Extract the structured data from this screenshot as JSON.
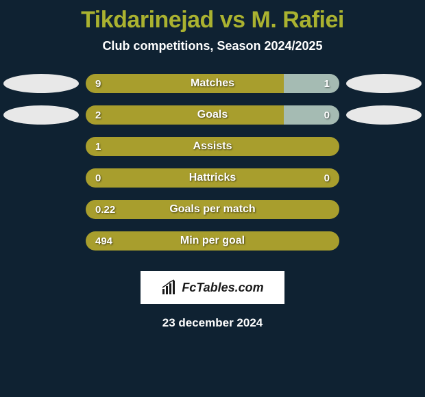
{
  "title": "Tikdarinejad vs M. Rafiei",
  "subtitle": "Club competitions, Season 2024/2025",
  "date": "23 december 2024",
  "logo_text": "FcTables.com",
  "colors": {
    "background": "#0f2232",
    "title": "#aab230",
    "text_white": "#ffffff",
    "bar_left": "#a89e2d",
    "bar_right_blue": "#a5bbb3",
    "ellipse_light": "#e8e8e8"
  },
  "stats": [
    {
      "label": "Matches",
      "left_value": "9",
      "right_value": "1",
      "left_pct": 78,
      "left_color": "#a89e2d",
      "right_color": "#a5bbb3",
      "show_left_ellipse": true,
      "show_right_ellipse": true,
      "left_ellipse_color": "#e8e8e8",
      "right_ellipse_color": "#e8e8e8",
      "show_right_value": true
    },
    {
      "label": "Goals",
      "left_value": "2",
      "right_value": "0",
      "left_pct": 78,
      "left_color": "#a89e2d",
      "right_color": "#a5bbb3",
      "show_left_ellipse": true,
      "show_right_ellipse": true,
      "left_ellipse_color": "#e8e8e8",
      "right_ellipse_color": "#e8e8e8",
      "show_right_value": true
    },
    {
      "label": "Assists",
      "left_value": "1",
      "right_value": "",
      "left_pct": 100,
      "left_color": "#a89e2d",
      "right_color": "#a89e2d",
      "show_left_ellipse": false,
      "show_right_ellipse": false,
      "show_right_value": false
    },
    {
      "label": "Hattricks",
      "left_value": "0",
      "right_value": "0",
      "left_pct": 50,
      "left_color": "#a89e2d",
      "right_color": "#a89e2d",
      "show_left_ellipse": false,
      "show_right_ellipse": false,
      "show_right_value": true
    },
    {
      "label": "Goals per match",
      "left_value": "0.22",
      "right_value": "",
      "left_pct": 100,
      "left_color": "#a89e2d",
      "right_color": "#a89e2d",
      "show_left_ellipse": false,
      "show_right_ellipse": false,
      "show_right_value": false
    },
    {
      "label": "Min per goal",
      "left_value": "494",
      "right_value": "",
      "left_pct": 100,
      "left_color": "#a89e2d",
      "right_color": "#a89e2d",
      "show_left_ellipse": false,
      "show_right_ellipse": false,
      "show_right_value": false
    }
  ]
}
